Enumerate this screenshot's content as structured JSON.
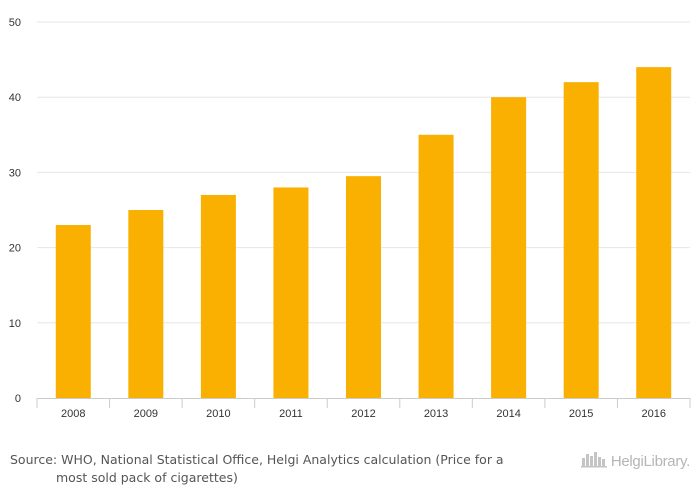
{
  "chart_data": {
    "type": "bar",
    "categories": [
      "2008",
      "2009",
      "2010",
      "2011",
      "2012",
      "2013",
      "2014",
      "2015",
      "2016"
    ],
    "values": [
      23,
      25,
      27,
      28,
      29.5,
      35,
      40,
      42,
      44
    ],
    "ylim": [
      0,
      50
    ],
    "yticks": [
      "0",
      "10",
      "20",
      "30",
      "40",
      "50"
    ],
    "grid": true,
    "legend": "none",
    "bar_color": "#f9b000",
    "grid_color": "#e6e6e6",
    "axis_color": "#cccccc"
  },
  "source": {
    "line1": "Source: WHO, National Statistical Office, Helgi Analytics calculation (Price for a",
    "line2": "most sold pack of cigarettes)"
  },
  "brand": {
    "text": "HelgiLibrary.",
    "icon": "helgi-city-logo-icon"
  }
}
